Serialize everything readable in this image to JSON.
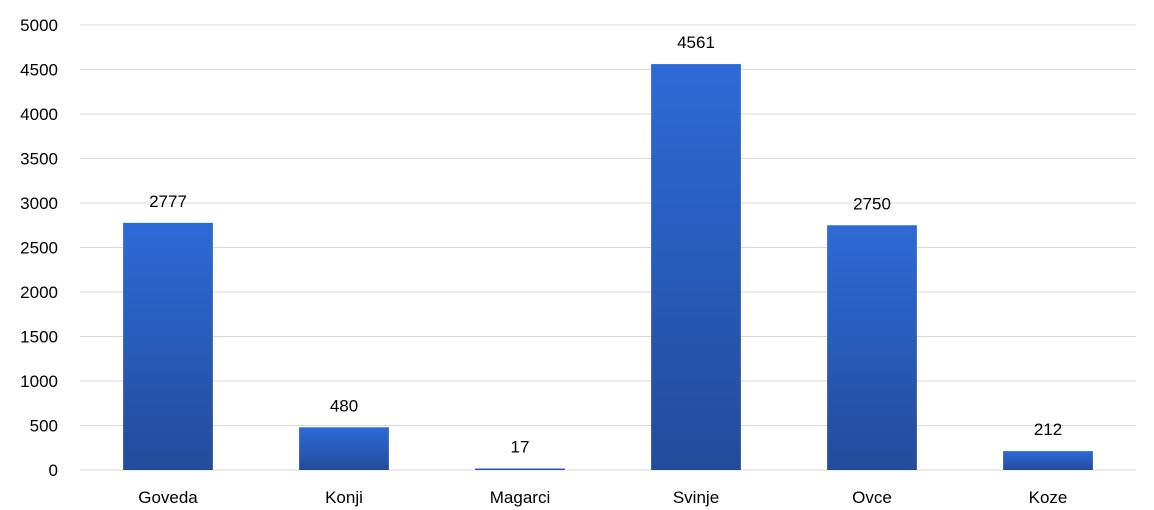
{
  "chart_data": {
    "type": "bar",
    "title": "",
    "xlabel": "",
    "ylabel": "",
    "categories": [
      "Goveda",
      "Konji",
      "Magarci",
      "Svinje",
      "Ovce",
      "Koze"
    ],
    "values": [
      2777,
      480,
      17,
      4561,
      2750,
      212
    ],
    "data_labels": [
      "2777",
      "480",
      "17",
      "4561",
      "2750",
      "212"
    ],
    "ylim": [
      0,
      5000
    ],
    "yticks": [
      0,
      500,
      1000,
      1500,
      2000,
      2500,
      3000,
      3500,
      4000,
      4500,
      5000
    ],
    "ytick_labels": [
      "0",
      "500",
      "1000",
      "1500",
      "2000",
      "2500",
      "3000",
      "3500",
      "4000",
      "4500",
      "5000"
    ],
    "grid": true,
    "legend": "none",
    "colors": {
      "bar_top": "#2E6AD6",
      "bar_bottom": "#234B9B",
      "grid": "#D9D9D9",
      "text": "#000000"
    }
  }
}
